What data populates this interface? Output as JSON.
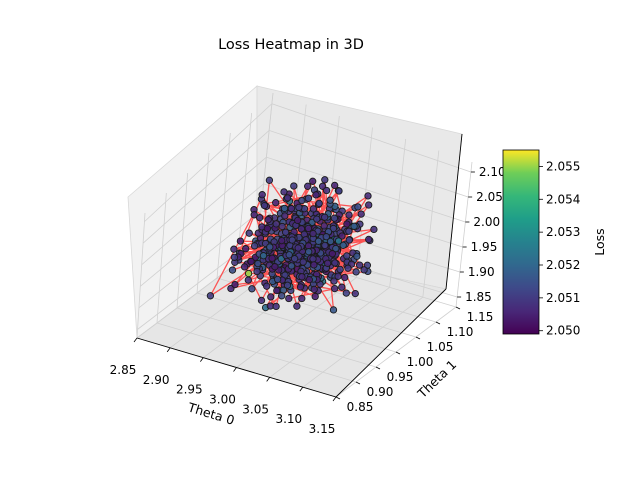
{
  "chart_data": {
    "type": "scatter",
    "projection": "3d",
    "title": "Loss Heatmap in 3D",
    "xlabel": "Theta 0",
    "ylabel": "Theta 1",
    "zlabel": "",
    "xlim": [
      2.85,
      3.15
    ],
    "ylim": [
      0.85,
      1.15
    ],
    "zlim": [
      1.83,
      2.12
    ],
    "x_ticks": [
      "2.85",
      "2.90",
      "2.95",
      "3.00",
      "3.05",
      "3.10",
      "3.15"
    ],
    "y_ticks": [
      "0.85",
      "0.90",
      "0.95",
      "1.00",
      "1.05",
      "1.10",
      "1.15"
    ],
    "z_ticks": [
      "1.85",
      "1.90",
      "1.95",
      "2.00",
      "2.05",
      "2.10"
    ],
    "grid": true,
    "path_color": "#ff3a3a",
    "marker_edge_color": "#1a1a1a",
    "colorbar": {
      "label": "Loss",
      "colormap": "viridis",
      "range": [
        2.0499,
        2.0555
      ],
      "ticks": [
        "2.050",
        "2.051",
        "2.052",
        "2.053",
        "2.054",
        "2.055"
      ]
    },
    "series": [
      {
        "note_points_visible": "approx. 600 points clustered around Theta0≈3.00, Theta1≈1.00, z≈1.95–2.05 connected by a red path; colors mostly ~2.0505–2.0515 (dark purple to blue), one outlier near 2.055 (yellow)",
        "sample_points": [
          {
            "x": 3.0,
            "y": 1.0,
            "z": 2.0,
            "c": 2.051
          },
          {
            "x": 2.97,
            "y": 0.98,
            "z": 1.97,
            "c": 2.0506
          },
          {
            "x": 3.03,
            "y": 1.02,
            "z": 2.03,
            "c": 2.0512
          },
          {
            "x": 2.95,
            "y": 1.04,
            "z": 2.05,
            "c": 2.0504
          },
          {
            "x": 3.05,
            "y": 0.96,
            "z": 1.95,
            "c": 2.0508
          },
          {
            "x": 2.92,
            "y": 1.0,
            "z": 1.92,
            "c": 2.0505
          },
          {
            "x": 3.08,
            "y": 1.0,
            "z": 2.08,
            "c": 2.0509
          },
          {
            "x": 3.0,
            "y": 0.93,
            "z": 1.98,
            "c": 2.0514
          },
          {
            "x": 3.0,
            "y": 1.07,
            "z": 2.02,
            "c": 2.0511
          },
          {
            "x": 2.94,
            "y": 0.97,
            "z": 1.93,
            "c": 2.055
          }
        ]
      }
    ]
  }
}
